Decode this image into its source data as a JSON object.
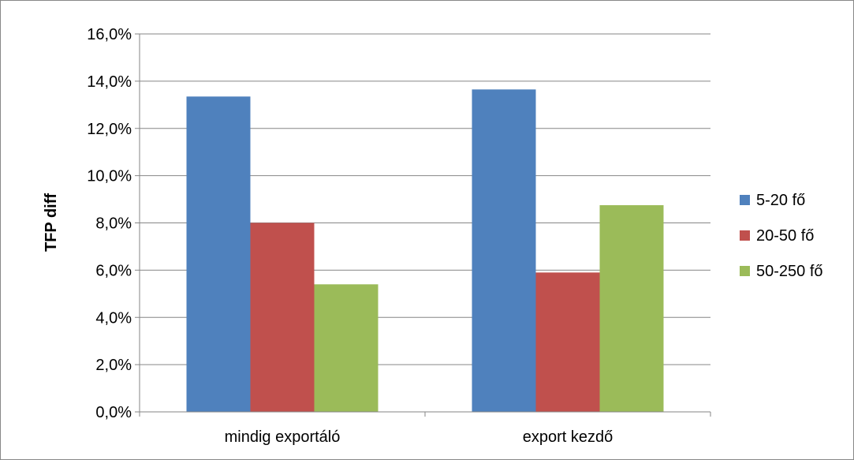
{
  "chart_data": {
    "type": "bar",
    "title": "",
    "xlabel": "",
    "ylabel": "TFP diff",
    "categories": [
      "mindig exportáló",
      "export kezdő"
    ],
    "series": [
      {
        "name": "5-20 fő",
        "values": [
          13.35,
          13.65
        ],
        "color": "#4F81BD"
      },
      {
        "name": "20-50 fő",
        "values": [
          8.0,
          5.9
        ],
        "color": "#C0504D"
      },
      {
        "name": "50-250 fő",
        "values": [
          5.4,
          8.75
        ],
        "color": "#9BBB59"
      }
    ],
    "ylim": [
      0,
      16
    ],
    "yticks": [
      "0,0%",
      "2,0%",
      "4,0%",
      "6,0%",
      "8,0%",
      "10,0%",
      "12,0%",
      "14,0%",
      "16,0%"
    ],
    "ytick_values": [
      0,
      2,
      4,
      6,
      8,
      10,
      12,
      14,
      16
    ],
    "grid": true,
    "legend_position": "right",
    "gridline_color": "#868686"
  }
}
